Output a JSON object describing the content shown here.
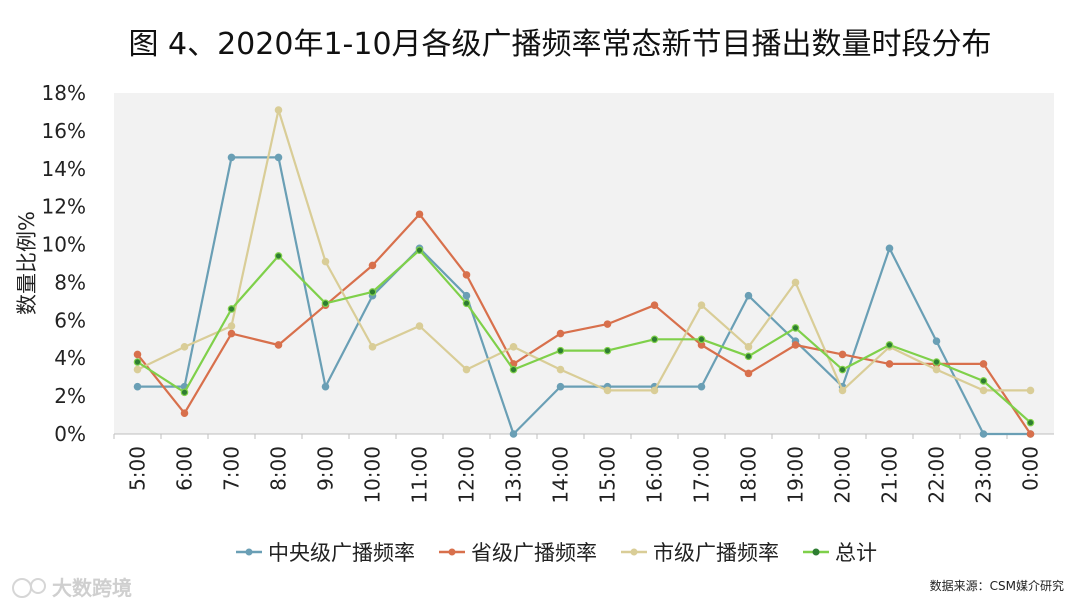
{
  "chart_data": {
    "type": "line",
    "title": "图 4、2020年1-10月各级广播频率常态新节目播出数量时段分布",
    "ylabel": "数量比例%",
    "xlabel": "",
    "ylim": [
      0,
      18
    ],
    "yticks": [
      0,
      2,
      4,
      6,
      8,
      10,
      12,
      14,
      16,
      18
    ],
    "ytick_labels": [
      "0%",
      "2%",
      "4%",
      "6%",
      "8%",
      "10%",
      "12%",
      "14%",
      "16%",
      "18%"
    ],
    "categories": [
      "5:00",
      "6:00",
      "7:00",
      "8:00",
      "9:00",
      "10:00",
      "11:00",
      "12:00",
      "13:00",
      "14:00",
      "15:00",
      "16:00",
      "17:00",
      "18:00",
      "19:00",
      "20:00",
      "21:00",
      "22:00",
      "23:00",
      "0:00"
    ],
    "series": [
      {
        "name": "中央级广播频率",
        "color": "#6a9fb5",
        "values": [
          2.5,
          2.5,
          14.6,
          14.6,
          2.5,
          7.3,
          9.8,
          7.3,
          0,
          2.5,
          2.5,
          2.5,
          2.5,
          7.3,
          4.9,
          2.5,
          9.8,
          4.9,
          0,
          0
        ]
      },
      {
        "name": "省级广播频率",
        "color": "#d8704c",
        "values": [
          4.2,
          1.1,
          5.3,
          4.7,
          6.8,
          8.9,
          11.6,
          8.4,
          3.7,
          5.3,
          5.8,
          6.8,
          4.7,
          3.2,
          4.7,
          4.2,
          3.7,
          3.7,
          3.7,
          0
        ]
      },
      {
        "name": "市级广播频率",
        "color": "#d9cd97",
        "values": [
          3.4,
          4.6,
          5.7,
          17.1,
          9.1,
          4.6,
          5.7,
          3.4,
          4.6,
          3.4,
          2.3,
          2.3,
          6.8,
          4.6,
          8.0,
          2.3,
          4.6,
          3.4,
          2.3,
          2.3
        ]
      },
      {
        "name": "总计",
        "color": "#7fd04a",
        "values": [
          3.8,
          2.2,
          6.6,
          9.4,
          6.9,
          7.5,
          9.7,
          6.9,
          3.4,
          4.4,
          4.4,
          5.0,
          5.0,
          4.1,
          5.6,
          3.4,
          4.7,
          3.8,
          2.8,
          0.6
        ]
      }
    ],
    "grid": false,
    "legend_position": "bottom"
  },
  "source_note": "数据来源：CSM媒介研究",
  "watermark": "大数跨境"
}
